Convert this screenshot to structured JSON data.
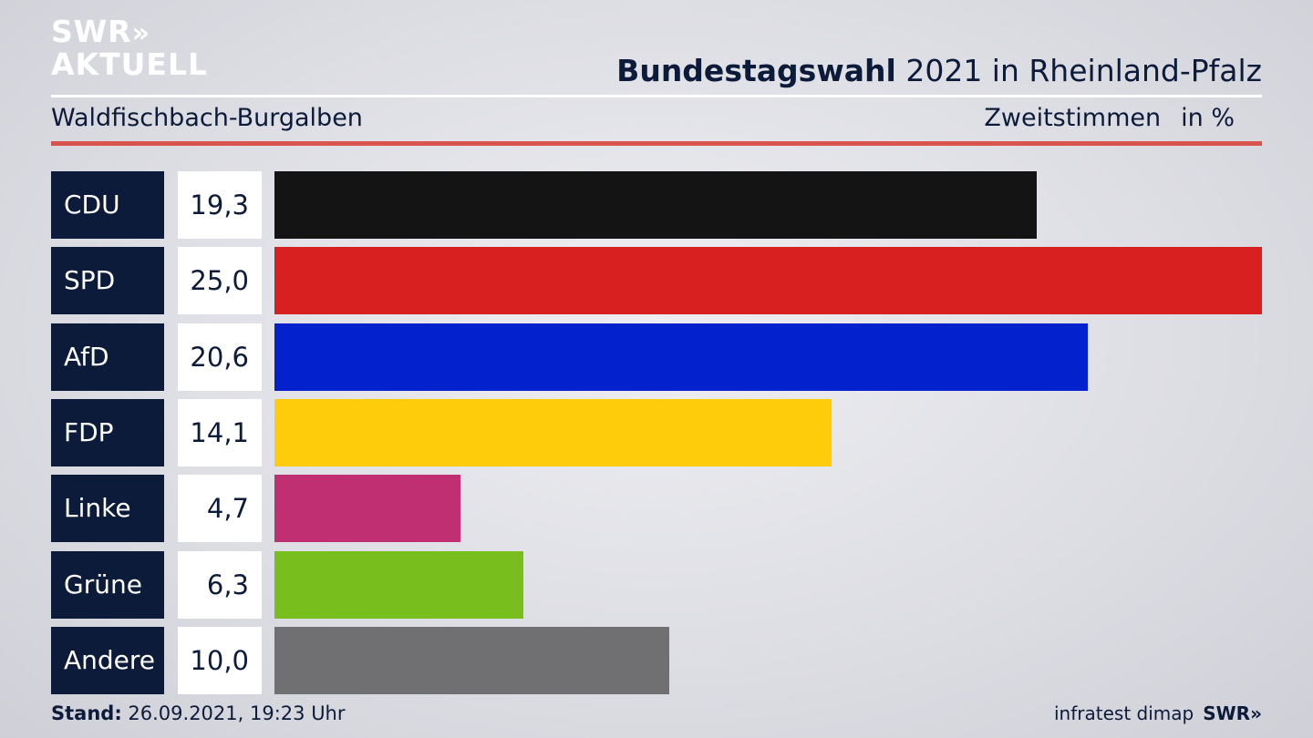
{
  "logo": {
    "line1": "SWR",
    "line1_mark": "»",
    "line2": "AKTUELL"
  },
  "header": {
    "title_bold": "Bundestagswahl",
    "title_rest": "2021 in Rheinland-Pfalz",
    "subtitle_left": "Waldfischbach-Burgalben",
    "vote_type": "Zweitstimmen",
    "unit": "in %"
  },
  "footer": {
    "stand_label": "Stand:",
    "stand_value": "26.09.2021, 19:23 Uhr",
    "source": "infratest dimap",
    "brand": "SWR",
    "brand_mark": "»"
  },
  "chart_data": {
    "type": "bar",
    "orientation": "horizontal",
    "categories": [
      "CDU",
      "SPD",
      "AfD",
      "FDP",
      "Linke",
      "Grüne",
      "Andere"
    ],
    "value_labels": [
      "19,3",
      "25,0",
      "20,6",
      "14,1",
      "4,7",
      "6,3",
      "10,0"
    ],
    "values": [
      19.3,
      25.0,
      20.6,
      14.1,
      4.7,
      6.3,
      10.0
    ],
    "colors": [
      "#141414",
      "#d82020",
      "#0321cc",
      "#fecc0a",
      "#bf2f72",
      "#78be1c",
      "#707072"
    ],
    "xlim": [
      0,
      25.0
    ],
    "title": "Bundestagswahl 2021 in Rheinland-Pfalz",
    "grid": false,
    "legend": "none"
  }
}
